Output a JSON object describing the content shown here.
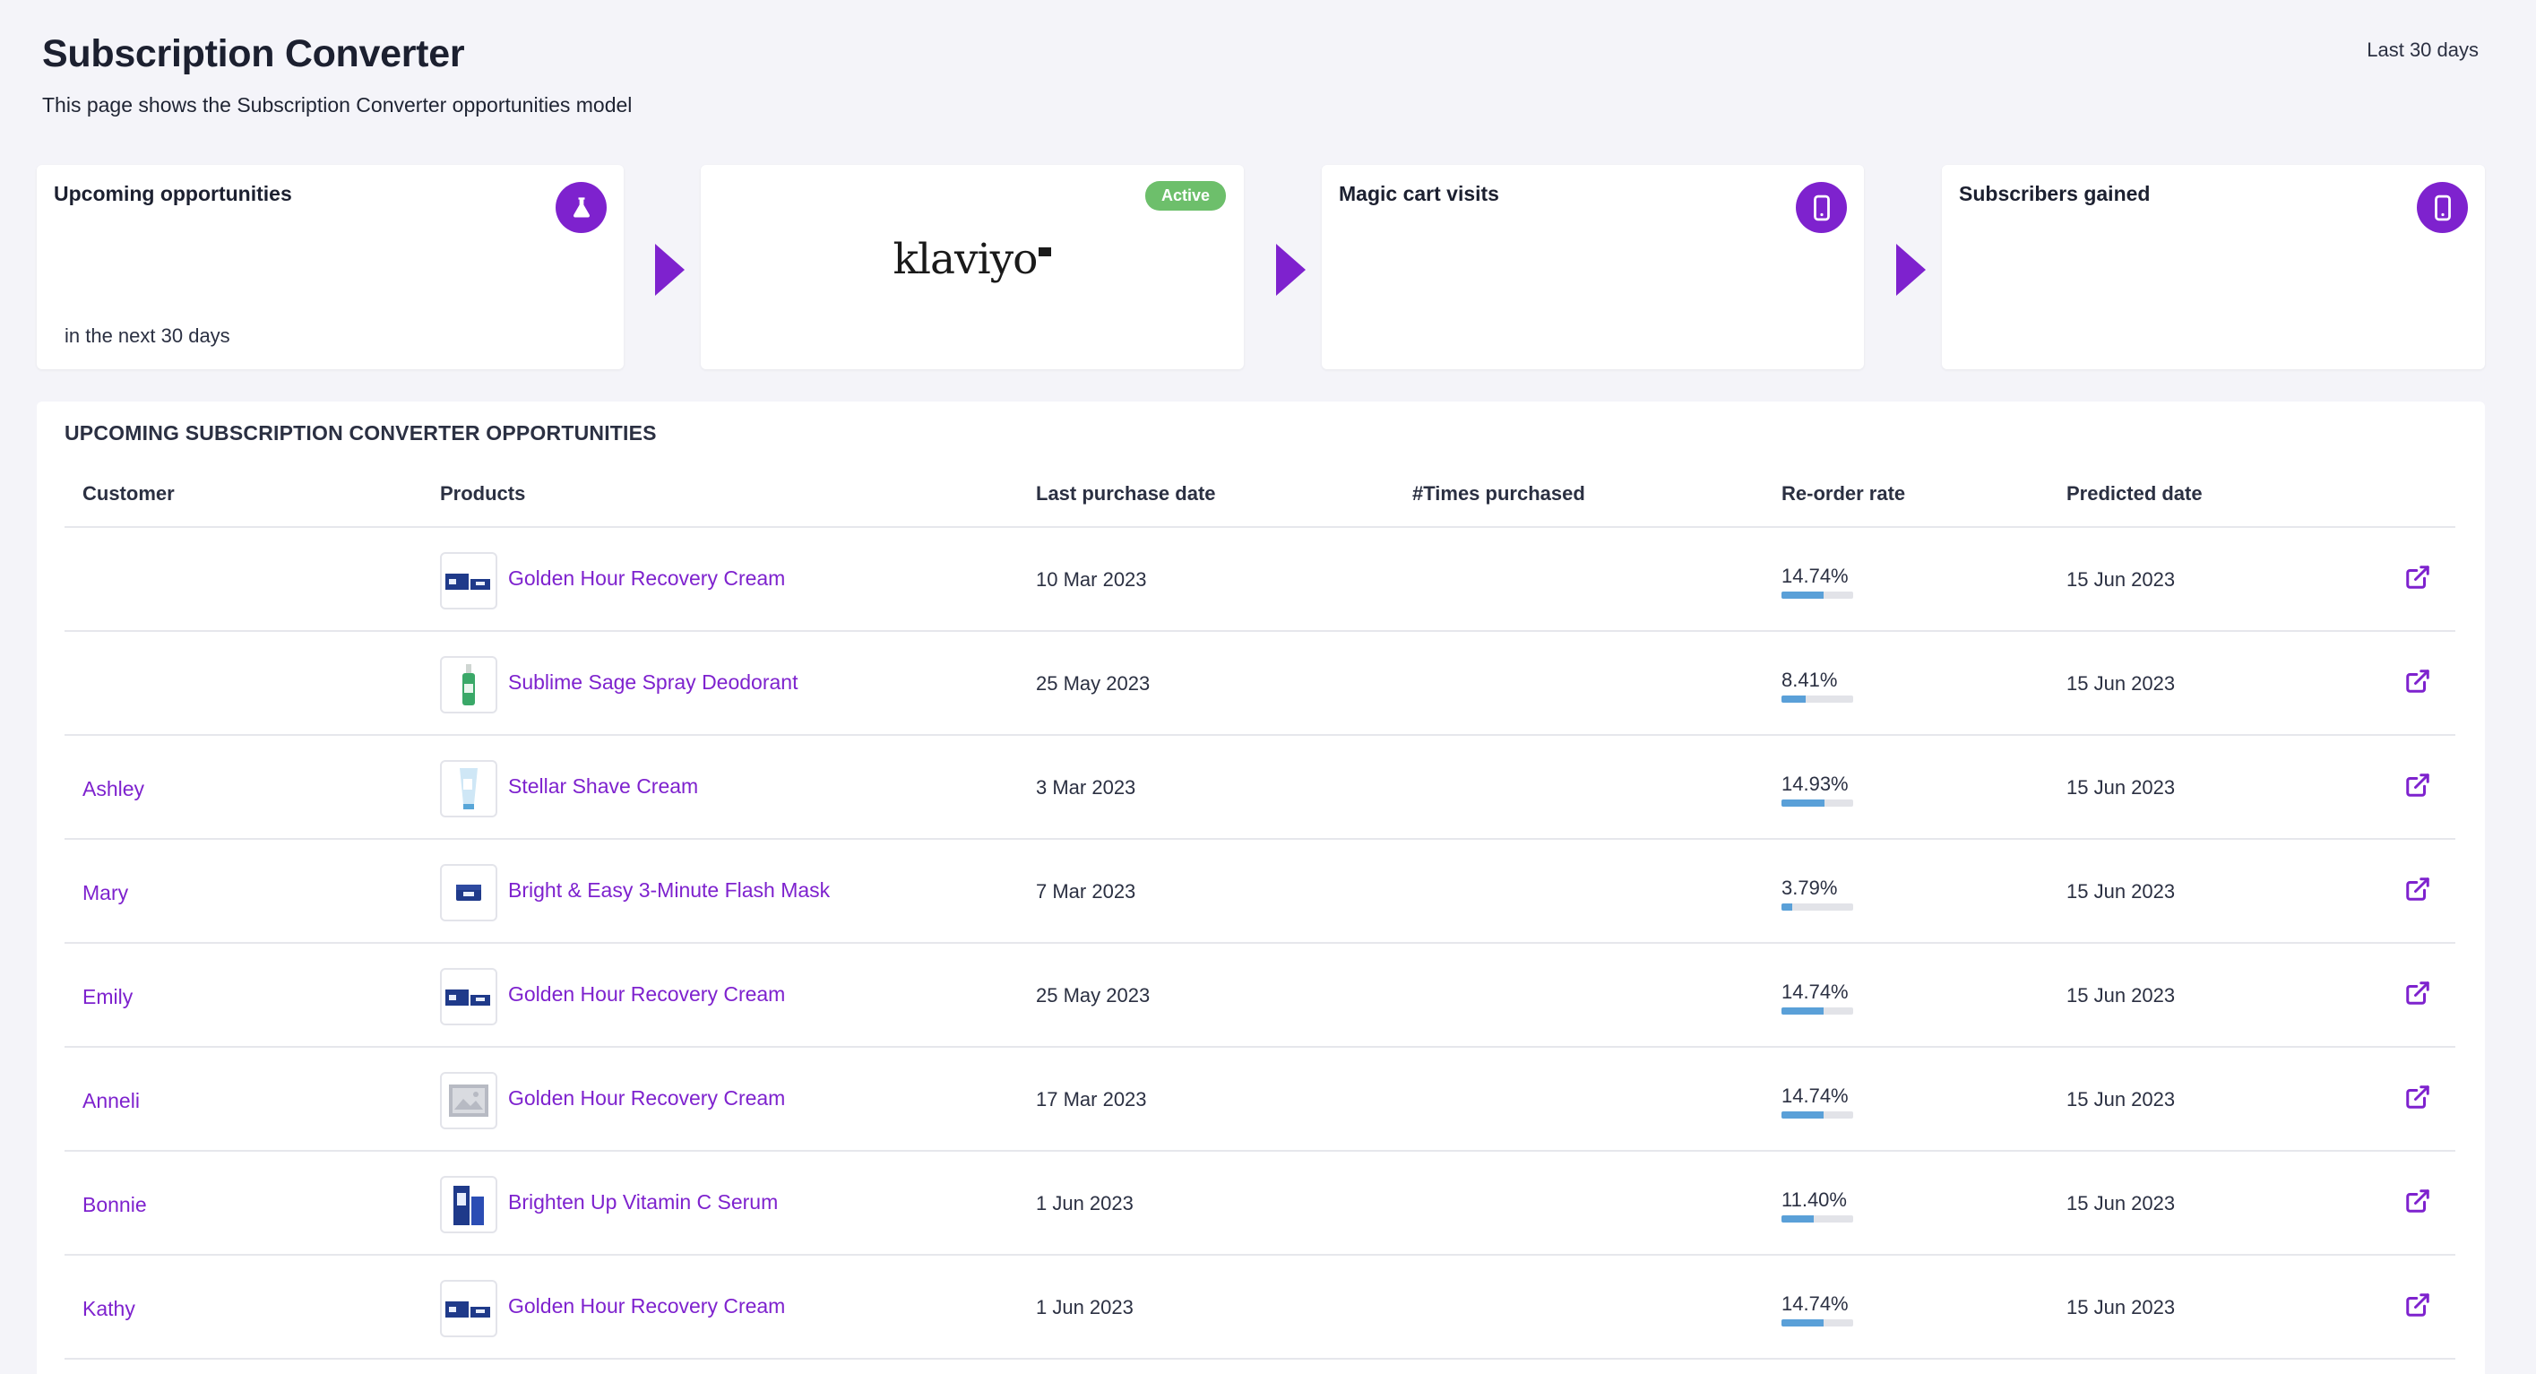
{
  "header": {
    "title": "Subscription Converter",
    "subtitle": "This page shows the Subscription Converter opportunities model",
    "date_range": "Last 30 days"
  },
  "cards": {
    "upcoming": {
      "title": "Upcoming opportunities",
      "note": "in the next 30 days",
      "icon": "flask-icon"
    },
    "klaviyo": {
      "logo_text": "klaviyo",
      "badge": "Active"
    },
    "magic_cart": {
      "title": "Magic cart visits",
      "icon": "mobile-phone-icon"
    },
    "subscribers": {
      "title": "Subscribers gained",
      "icon": "mobile-phone-icon"
    }
  },
  "table": {
    "heading": "UPCOMING SUBSCRIPTION CONVERTER OPPORTUNITIES",
    "columns": {
      "customer": "Customer",
      "products": "Products",
      "last_purchase": "Last purchase date",
      "times": "#Times purchased",
      "reorder": "Re-order rate",
      "predicted": "Predicted date"
    },
    "rows": [
      {
        "customer": "",
        "product": "Golden Hour Recovery Cream",
        "thumb": "cream-box",
        "last_purchase": "10 Mar 2023",
        "times": "",
        "reorder": "14.74%",
        "reorder_value": 14.74,
        "predicted": "15 Jun 2023"
      },
      {
        "customer": "",
        "product": "Sublime Sage Spray Deodorant",
        "thumb": "spray-bottle",
        "last_purchase": "25 May 2023",
        "times": "",
        "reorder": "8.41%",
        "reorder_value": 8.41,
        "predicted": "15 Jun 2023"
      },
      {
        "customer": "Ashley",
        "product": "Stellar Shave Cream",
        "thumb": "tube",
        "last_purchase": "3 Mar 2023",
        "times": "",
        "reorder": "14.93%",
        "reorder_value": 14.93,
        "predicted": "15 Jun 2023"
      },
      {
        "customer": "Mary",
        "product": "Bright & Easy 3-Minute Flash Mask",
        "thumb": "jar",
        "last_purchase": "7 Mar 2023",
        "times": "",
        "reorder": "3.79%",
        "reorder_value": 3.79,
        "predicted": "15 Jun 2023"
      },
      {
        "customer": "Emily",
        "product": "Golden Hour Recovery Cream",
        "thumb": "cream-box",
        "last_purchase": "25 May 2023",
        "times": "",
        "reorder": "14.74%",
        "reorder_value": 14.74,
        "predicted": "15 Jun 2023"
      },
      {
        "customer": "Anneli",
        "product": "Golden Hour Recovery Cream",
        "thumb": "placeholder-image",
        "last_purchase": "17 Mar 2023",
        "times": "",
        "reorder": "14.74%",
        "reorder_value": 14.74,
        "predicted": "15 Jun 2023"
      },
      {
        "customer": "Bonnie",
        "product": "Brighten Up Vitamin C Serum",
        "thumb": "serum-box",
        "last_purchase": "1 Jun 2023",
        "times": "",
        "reorder": "11.40%",
        "reorder_value": 11.4,
        "predicted": "15 Jun 2023"
      },
      {
        "customer": "Kathy",
        "product": "Golden Hour Recovery Cream",
        "thumb": "cream-box",
        "last_purchase": "1 Jun 2023",
        "times": "",
        "reorder": "14.74%",
        "reorder_value": 14.74,
        "predicted": "15 Jun 2023"
      }
    ]
  },
  "colors": {
    "accent": "#7e22ce",
    "badge": "#6dbf6b",
    "bar_fill": "#5aa0d8",
    "bar_track": "#e2e3e8"
  },
  "icons": {
    "row_action": "external-link-icon"
  }
}
